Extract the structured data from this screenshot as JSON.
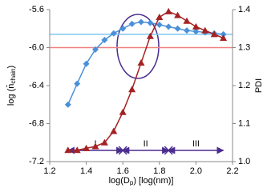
{
  "chart_data": {
    "type": "line",
    "x_label": {
      "main": "log(D",
      "sub": "p",
      "end": ") [log(nm)]"
    },
    "y_label": {
      "main": "log (n̄",
      "sub": "chain",
      "end": ")"
    },
    "y2_label": "PDI",
    "x": [
      1.3,
      1.35,
      1.4,
      1.45,
      1.5,
      1.55,
      1.6,
      1.65,
      1.7,
      1.75,
      1.8,
      1.85,
      1.9,
      1.95,
      2.0,
      2.05,
      2.1,
      2.15
    ],
    "series": [
      {
        "color": "#4a90d9",
        "marker": "diamond",
        "values": [
          -6.6,
          -6.38,
          -6.17,
          -6.02,
          -5.92,
          -5.85,
          -5.8,
          -5.75,
          -5.73,
          -5.74,
          -5.76,
          -5.78,
          -5.8,
          -5.82,
          -5.83,
          -5.84,
          -5.85,
          -5.86
        ]
      },
      {
        "color": "#a52222",
        "marker": "triangle",
        "axis": "y2",
        "values": [
          1.03,
          1.03,
          1.035,
          1.04,
          1.05,
          1.08,
          1.13,
          1.19,
          1.26,
          1.33,
          1.38,
          1.395,
          1.385,
          1.37,
          1.355,
          1.345,
          1.335,
          1.325
        ]
      }
    ],
    "reference_lines": [
      {
        "axis": "y",
        "value": -5.86,
        "color": "#7ec8f0"
      },
      {
        "axis": "y2",
        "value": 1.3,
        "color": "#f08080"
      }
    ],
    "regions": [
      {
        "label": "I",
        "range": [
          1.3,
          1.6
        ]
      },
      {
        "label": "II",
        "range": [
          1.6,
          1.85
        ]
      },
      {
        "label": "III",
        "range": [
          1.85,
          2.15
        ]
      }
    ],
    "xlim": [
      1.2,
      2.2
    ],
    "xticks": [
      1.2,
      1.4,
      1.6,
      1.8,
      {
        "value": 2.0,
        "label": "2.0"
      },
      2.2
    ],
    "ylim": [
      -7.2,
      -5.6
    ],
    "yticks": [
      -7.2,
      -6.8,
      -6.4,
      {
        "value": -6.0,
        "label": "-6.0"
      },
      -5.6
    ],
    "y2lim": [
      1.0,
      1.4
    ],
    "y2ticks": [
      {
        "value": 1.0,
        "label": "1.0"
      },
      1.1,
      1.2,
      1.3,
      1.4
    ]
  }
}
